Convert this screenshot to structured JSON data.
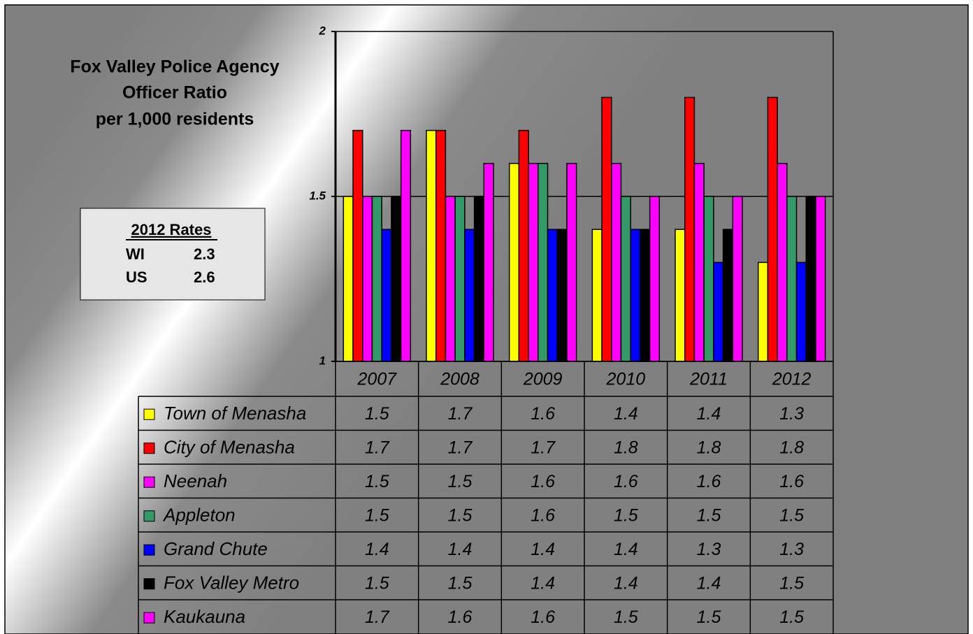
{
  "chart_data": {
    "type": "bar",
    "title": [
      "Fox Valley Police Agency",
      "Officer Ratio",
      "per 1,000 residents"
    ],
    "categories": [
      "2007",
      "2008",
      "2009",
      "2010",
      "2011",
      "2012"
    ],
    "series": [
      {
        "name": "Town of Menasha",
        "color": "#ffff00",
        "values": [
          1.5,
          1.7,
          1.6,
          1.4,
          1.4,
          1.3
        ]
      },
      {
        "name": "City of Menasha",
        "color": "#ff0000",
        "values": [
          1.7,
          1.7,
          1.7,
          1.8,
          1.8,
          1.8
        ]
      },
      {
        "name": "Neenah",
        "color": "#ff00ff",
        "values": [
          1.5,
          1.5,
          1.6,
          1.6,
          1.6,
          1.6
        ]
      },
      {
        "name": "Appleton",
        "color": "#339966",
        "values": [
          1.5,
          1.5,
          1.6,
          1.5,
          1.5,
          1.5
        ]
      },
      {
        "name": "Grand Chute",
        "color": "#0000ff",
        "values": [
          1.4,
          1.4,
          1.4,
          1.4,
          1.3,
          1.3
        ]
      },
      {
        "name": "Fox Valley Metro",
        "color": "#000000",
        "values": [
          1.5,
          1.5,
          1.4,
          1.4,
          1.4,
          1.5
        ]
      },
      {
        "name": "Kaukauna",
        "color": "#ff00ff",
        "values": [
          1.7,
          1.6,
          1.6,
          1.5,
          1.5,
          1.5
        ]
      }
    ],
    "ylim": [
      1,
      2
    ],
    "yticks": [
      1,
      1.5,
      2
    ],
    "grid": true,
    "rates_box": {
      "title": "2012 Rates",
      "rows": [
        [
          "WI",
          2.3
        ],
        [
          "US",
          2.6
        ]
      ]
    }
  }
}
